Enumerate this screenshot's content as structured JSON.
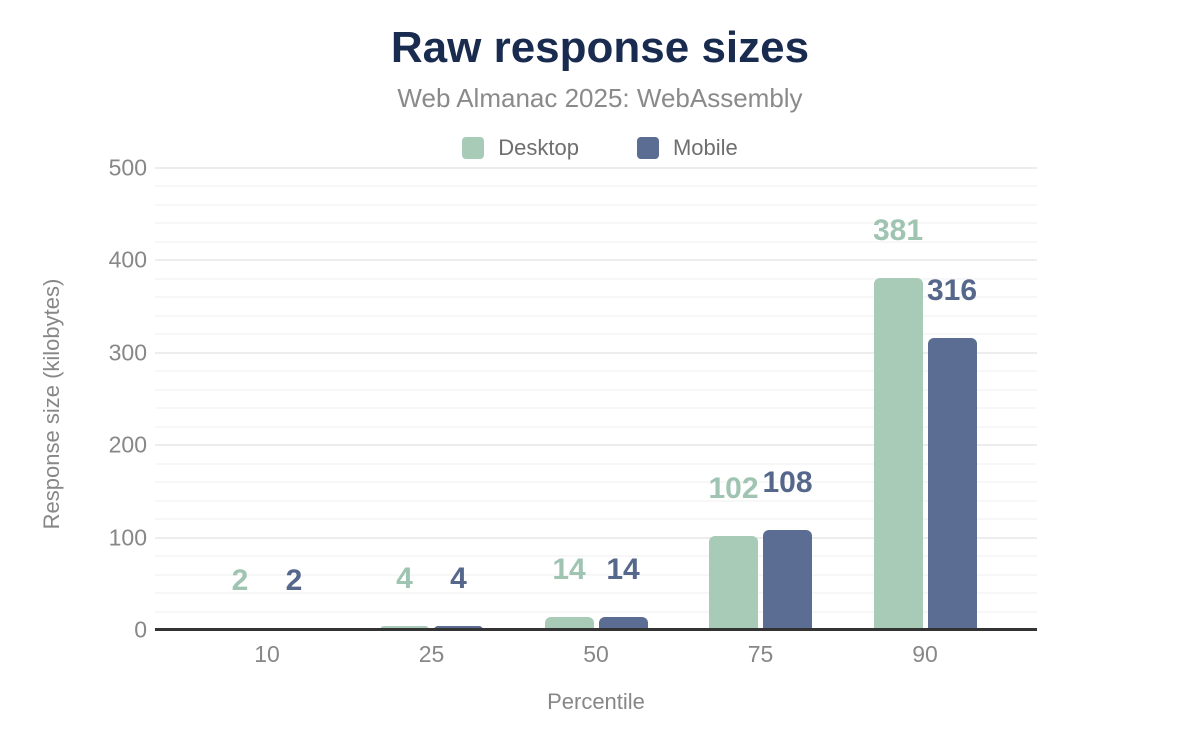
{
  "header": {
    "title": "Raw response sizes",
    "subtitle": "Web Almanac 2025: WebAssembly"
  },
  "chart_data": {
    "type": "bar",
    "title": "Raw response sizes",
    "subtitle": "Web Almanac 2025: WebAssembly",
    "xlabel": "Percentile",
    "ylabel": "Response size (kilobytes)",
    "categories": [
      "10",
      "25",
      "50",
      "75",
      "90"
    ],
    "series": [
      {
        "name": "Desktop",
        "values": [
          2,
          4,
          14,
          102,
          381
        ],
        "color": "#a7cbb7",
        "label_color": "#9fc4b1"
      },
      {
        "name": "Mobile",
        "values": [
          2,
          4,
          14,
          108,
          316
        ],
        "color": "#5b6d92",
        "label_color": "#55678a"
      }
    ],
    "ylim": [
      0,
      500
    ],
    "yticks": [
      0,
      100,
      200,
      300,
      400,
      500
    ],
    "minor_grid_step": 20,
    "grid": "on",
    "legend_position": "top",
    "value_labels": "on"
  },
  "colors": {
    "title_text": "#1a2b50",
    "subtitle_text": "#8a8a8a",
    "axis_text": "#878787",
    "legend_text": "#6e6e6e",
    "axis_line": "#333333",
    "grid_major": "#ededed",
    "grid_minor": "#f7f7f7",
    "background": "#ffffff"
  }
}
